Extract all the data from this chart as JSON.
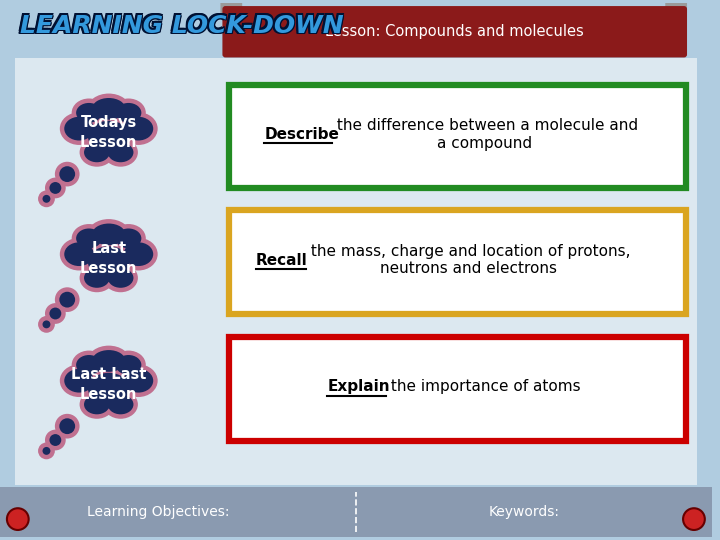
{
  "bg_color": "#b0cce0",
  "header_bg": "#8b1a1a",
  "header_text": "Lesson: Compounds and molecules",
  "header_text_color": "#ffffff",
  "footer_bg": "#8a9ab0",
  "footer_text_color": "#ffffff",
  "footer_left": "Learning Objectives:",
  "footer_right": "Keywords:",
  "cloud_fill": "#1a2a5e",
  "cloud_outline": "#c07090",
  "cloud_text_color": "#ffffff",
  "clouds": [
    "Todays\nLesson",
    "Last\nLesson",
    "Last Last\nLesson"
  ],
  "box_colors": [
    "#228B22",
    "#DAA520",
    "#CC0000"
  ],
  "box_keywords": [
    "Describe",
    "Recall",
    "Explain"
  ],
  "box_rests": [
    " the difference between a molecule and\na compound",
    " the mass, charge and location of protons,\nneutrons and electrons",
    " the importance of atoms"
  ],
  "accent_circles_color": "#cc2222",
  "tab_color": "#9a9a9a"
}
